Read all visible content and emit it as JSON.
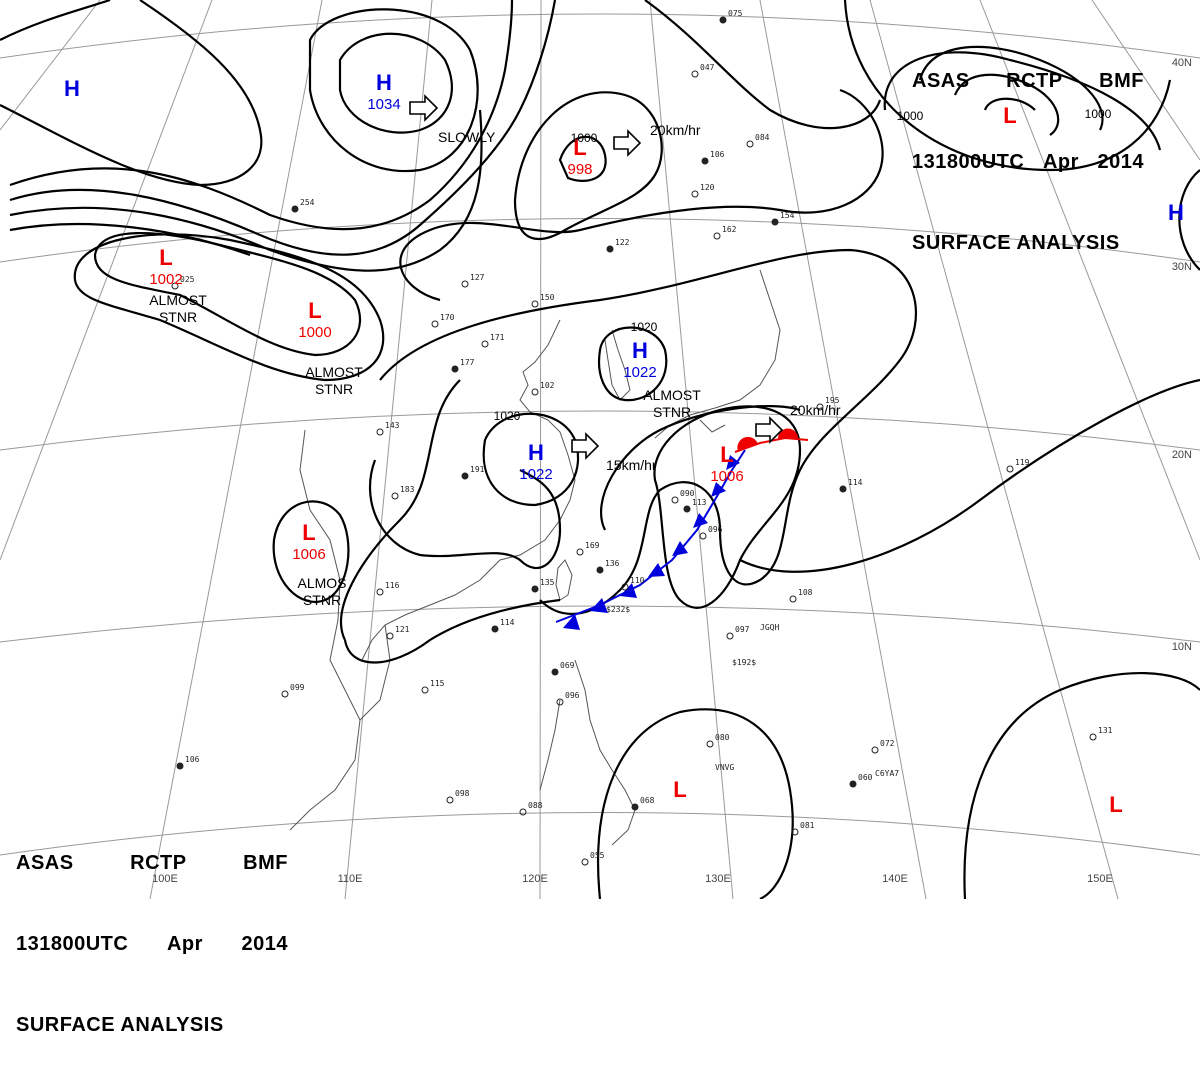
{
  "title": {
    "line1": [
      "ASAS",
      "RCTP",
      "BMF"
    ],
    "line2": [
      "131800UTC",
      "Apr",
      "2014"
    ],
    "line3": "SURFACE ANALYSIS"
  },
  "colors": {
    "high": "#0000dd",
    "low": "#ee0000",
    "isobar": "#000000",
    "grid": "#999999",
    "coast": "#555555"
  },
  "longitude_labels": [
    "100E",
    "110E",
    "120E",
    "130E",
    "140E",
    "150E"
  ],
  "latitude_labels": [
    "40N",
    "30N",
    "20N",
    "10N"
  ],
  "pressure_systems": [
    {
      "type": "H",
      "pressure": ""
    },
    {
      "type": "H",
      "pressure": "1034"
    },
    {
      "type": "L",
      "pressure": "998"
    },
    {
      "type": "L",
      "pressure": ""
    },
    {
      "type": "H",
      "pressure": ""
    },
    {
      "type": "L",
      "pressure": "1002"
    },
    {
      "type": "L",
      "pressure": "1000"
    },
    {
      "type": "H",
      "pressure": "1022"
    },
    {
      "type": "H",
      "pressure": "1022"
    },
    {
      "type": "L",
      "pressure": "1006"
    },
    {
      "type": "L",
      "pressure": "1006"
    },
    {
      "type": "L",
      "pressure": ""
    },
    {
      "type": "L",
      "pressure": ""
    }
  ],
  "movement_labels": [
    "SLOWLY",
    "20km/hr",
    "15km/hr",
    "20km/hr"
  ],
  "stationary_labels": [
    {
      "line1": "ALMOST",
      "line2": "STNR"
    },
    {
      "line1": "ALMOST",
      "line2": "STNR"
    },
    {
      "line1": "ALMOST",
      "line2": "STNR"
    },
    {
      "line1": "ALMOS",
      "line2": "STNR"
    }
  ],
  "isobar_labels": [
    "1000",
    "1000",
    "1000",
    "1020",
    "1020"
  ],
  "station_reports": [
    "254",
    "127",
    "170",
    "177",
    "150",
    "171",
    "122",
    "102",
    "143",
    "191",
    "183",
    "169",
    "135",
    "116",
    "121",
    "114",
    "099",
    "115",
    "106",
    "098",
    "088",
    "069",
    "096",
    "055",
    "068",
    "080",
    "081",
    "060",
    "072",
    "131",
    "114",
    "108",
    "097",
    "113",
    "096",
    "110",
    "136",
    "025",
    "090",
    "106",
    "120",
    "047",
    "075",
    "084",
    "162",
    "154",
    "195",
    "119"
  ],
  "station_codes": [
    "$232$",
    "$192$",
    "JGQH",
    "VNVG",
    "C6YA7"
  ]
}
